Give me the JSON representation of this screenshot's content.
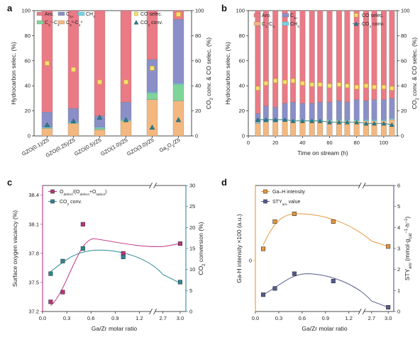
{
  "panels": [
    {
      "id": "a",
      "label": "a"
    },
    {
      "id": "b",
      "label": "b"
    },
    {
      "id": "c",
      "label": "c"
    },
    {
      "id": "d",
      "label": "d"
    }
  ],
  "colors": {
    "aro": "#ea7a85",
    "c5plus": "#8b8fc8",
    "ch4": "#6dd6e8",
    "c2c4eq": "#7fd49a",
    "c2c4o": "#f3b87f",
    "co_selec": "#f5df70",
    "co2_conv": "#2f7d8a",
    "magenta": "#c0317f",
    "teal": "#2a8a96",
    "orange": "#e8963a",
    "slate": "#555a8e"
  },
  "chart_data": [
    {
      "type": "bar",
      "panel": "a",
      "categories": [
        "GZO(0.1)/Z5",
        "GZO(0.25)/Z5",
        "GZO(0.5)/Z5",
        "GZO(1.0)/Z5",
        "GZO(3.0)/Z5",
        "Ga2O3/Z5"
      ],
      "stacked": true,
      "series": [
        {
          "name": "C2-C4o",
          "key": "c2c4o",
          "values": [
            6,
            10,
            5,
            12,
            29,
            28
          ]
        },
        {
          "name": "C2-C4=",
          "key": "c2c4eq",
          "values": [
            0,
            0,
            1,
            0,
            5,
            13
          ]
        },
        {
          "name": "CH4",
          "key": "ch4",
          "values": [
            1,
            1,
            1,
            1,
            1,
            1
          ]
        },
        {
          "name": "C5+",
          "key": "c5plus",
          "values": [
            12,
            11,
            9,
            14,
            26,
            51
          ]
        },
        {
          "name": "Aro.",
          "key": "aro",
          "values": [
            81,
            78,
            84,
            73,
            39,
            7
          ]
        }
      ],
      "scatter": [
        {
          "name": "CO selec.",
          "key": "co_selec",
          "marker": "square",
          "values": [
            58,
            53,
            43,
            43,
            54,
            97
          ]
        },
        {
          "name": "CO2 conv.",
          "key": "co2_conv",
          "marker": "triangle",
          "values": [
            9,
            12,
            15,
            13,
            7,
            13
          ]
        }
      ],
      "ylabel": "Hydrocarbon selec. (%)",
      "y2label": "CO2 conv. & CO selec. (%)",
      "ylim": [
        0,
        100
      ],
      "yticks": [
        0,
        20,
        40,
        60,
        80,
        100
      ],
      "y2lim": [
        0,
        100
      ],
      "y2ticks": [
        0,
        20,
        40,
        60,
        80,
        100
      ],
      "legend_entries": [
        "Aro.",
        "C5+",
        "CH4",
        "C2=-C4=",
        "C2o-C4o",
        "CO selec.",
        "CO2 conv."
      ]
    },
    {
      "type": "bar",
      "panel": "b",
      "x": [
        7,
        13,
        20,
        27,
        33,
        40,
        47,
        53,
        60,
        67,
        73,
        80,
        87,
        93,
        100,
        106
      ],
      "stacked": true,
      "series": [
        {
          "name": "C2-C4",
          "key": "c2c4o",
          "values": [
            10,
            11,
            11,
            12,
            12,
            12,
            12,
            12,
            12,
            12,
            12,
            12,
            12,
            12,
            12,
            13
          ]
        },
        {
          "name": "CH4",
          "key": "ch4",
          "values": [
            1,
            1,
            1,
            1,
            1,
            1,
            1,
            1,
            1,
            1,
            1,
            1,
            1,
            1,
            1,
            1
          ]
        },
        {
          "name": "C5+",
          "key": "c5plus",
          "values": [
            7,
            12,
            11,
            13,
            14,
            13,
            13,
            14,
            14,
            15,
            14,
            16,
            15,
            16,
            16,
            16
          ]
        },
        {
          "name": "Aro.",
          "key": "aro",
          "values": [
            82,
            76,
            77,
            74,
            73,
            74,
            74,
            73,
            73,
            72,
            73,
            71,
            72,
            71,
            71,
            70
          ]
        }
      ],
      "scatter": [
        {
          "name": "CO selec.",
          "key": "co_selec",
          "marker": "square",
          "values": [
            38,
            42,
            44,
            43,
            44,
            42,
            41,
            41,
            40,
            41,
            40,
            39,
            40,
            39,
            39,
            38
          ]
        },
        {
          "name": "CO2 conv.",
          "key": "co2_conv",
          "marker": "triangle",
          "line": true,
          "values": [
            13,
            13,
            13,
            13,
            12,
            12,
            12,
            12,
            11,
            11,
            11,
            11,
            10,
            10,
            10,
            9
          ]
        }
      ],
      "xlabel": "Time on stream (h)",
      "ylabel": "Hydrocarbon selec. (%)",
      "y2label": "CO2 conv. & CO selec. (%)",
      "xlim": [
        0,
        110
      ],
      "xticks": [
        0,
        20,
        40,
        60,
        80,
        100
      ],
      "ylim": [
        0,
        100
      ],
      "yticks": [
        0,
        20,
        40,
        60,
        80,
        100
      ],
      "y2lim": [
        0,
        100
      ],
      "y2ticks": [
        0,
        20,
        40,
        60,
        80,
        100
      ],
      "legend_entries": [
        "Aro.",
        "C5+",
        "C2-C4",
        "CH4",
        "CO selec.",
        "CO2 conv."
      ]
    },
    {
      "type": "scatter",
      "panel": "c",
      "x": [
        0.1,
        0.25,
        0.5,
        1.0,
        3.0
      ],
      "series": [
        {
          "name": "Odefect/(Odefect+Olattice)",
          "key": "magenta",
          "marker": "square",
          "axis": "left",
          "values": [
            37.3,
            37.4,
            38.1,
            37.8,
            37.9
          ]
        },
        {
          "name": "CO2 conv.",
          "key": "teal",
          "marker": "square",
          "axis": "right",
          "values": [
            9,
            12,
            15,
            13,
            7
          ]
        }
      ],
      "xlabel": "Ga/Zr molar ratio",
      "ylabel": "Surface oxygen vacancy (%)",
      "y2label": "CO2 conversion (%)",
      "ylim": [
        37.2,
        38.5
      ],
      "yticks": [
        37.2,
        37.5,
        37.8,
        38.1,
        38.4
      ],
      "y2lim": [
        0,
        30
      ],
      "y2ticks": [
        0,
        5,
        10,
        15,
        20,
        25,
        30
      ],
      "xticks_left": [
        0.0,
        0.3,
        0.6,
        0.9,
        1.2
      ],
      "xticks_right": [
        2.7,
        3.0
      ],
      "axis_break": true
    },
    {
      "type": "scatter",
      "panel": "d",
      "x": [
        0.1,
        0.25,
        0.5,
        1.0,
        3.0
      ],
      "series": [
        {
          "name": "Ga-H intensity",
          "key": "orange",
          "marker": "square",
          "axis": "left",
          "values": [
            0.15,
            0.5,
            0.6,
            0.5,
            0.18
          ]
        },
        {
          "name": "STYaro value",
          "key": "slate",
          "marker": "square",
          "axis": "right",
          "values": [
            0.8,
            1.1,
            1.8,
            1.45,
            0.2
          ]
        }
      ],
      "xlabel": "Ga/Zr molar ratio",
      "ylabel": "Ga-H intensity ×100 (a.u.)",
      "y2label": "STYaro (mmol·gcat^-1·h^-1)",
      "y2lim": [
        0,
        6
      ],
      "y2ticks": [
        0,
        1,
        2,
        3,
        4,
        5,
        6
      ],
      "yticks_labels": [
        "0"
      ],
      "xticks_left": [
        0.0,
        0.3,
        0.6,
        0.9,
        1.2
      ],
      "xticks_right": [
        2.7,
        3.0
      ],
      "axis_break": true
    }
  ]
}
